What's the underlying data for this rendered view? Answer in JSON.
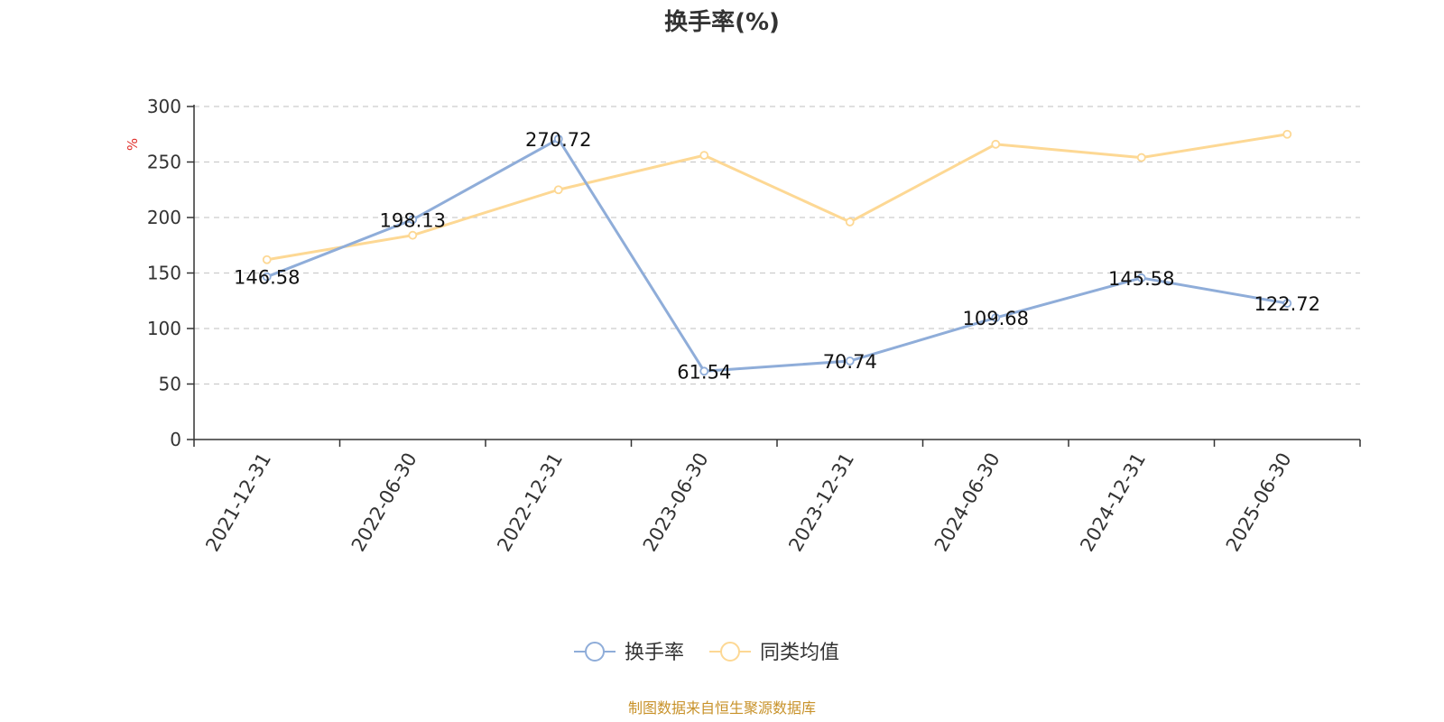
{
  "chart_data": {
    "type": "line",
    "title": "换手率(%)",
    "ylabel": "%",
    "xlabel": "",
    "ylim": [
      0,
      300
    ],
    "yticks": [
      0,
      50,
      100,
      150,
      200,
      250,
      300
    ],
    "grid": true,
    "legend_position": "bottom-center",
    "categories": [
      "2021-12-31",
      "2022-06-30",
      "2022-12-31",
      "2023-06-30",
      "2023-12-31",
      "2024-06-30",
      "2024-12-31",
      "2025-06-30"
    ],
    "series": [
      {
        "name": "换手率",
        "color": "#8fadd9",
        "values": [
          146.58,
          198.13,
          270.72,
          61.54,
          70.74,
          109.68,
          145.58,
          122.72
        ],
        "labels": [
          "146.58",
          "198.13",
          "270.72",
          "61.54",
          "70.74",
          "109.68",
          "145.58",
          "122.72"
        ]
      },
      {
        "name": "同类均值",
        "color": "#fdd894",
        "values": [
          162,
          184,
          225,
          256,
          196,
          266,
          254,
          275
        ]
      }
    ],
    "source": "制图数据来自恒生聚源数据库"
  }
}
